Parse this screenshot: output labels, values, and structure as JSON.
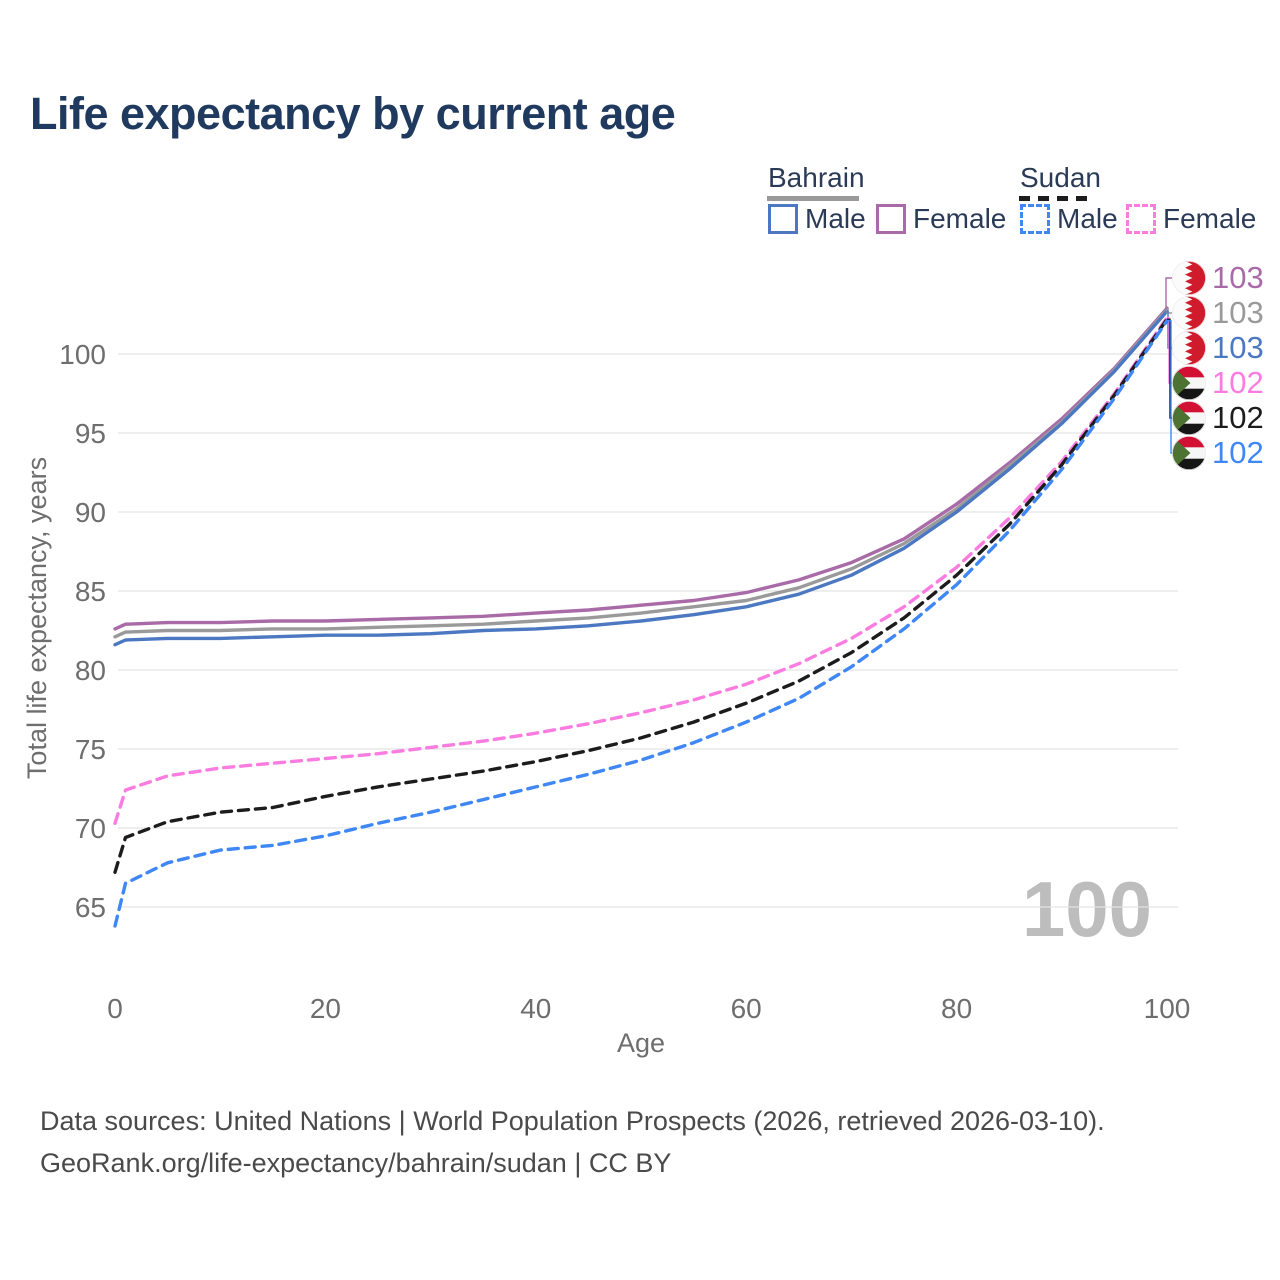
{
  "title": "Life expectancy by current age",
  "legend": {
    "groups": [
      {
        "name": "Bahrain",
        "line_style": "solid",
        "line_color": "#9a9a9a",
        "items": [
          {
            "label": "Male",
            "color": "#4b78c1",
            "style": "solid"
          },
          {
            "label": "Female",
            "color": "#a96ba8",
            "style": "solid"
          }
        ]
      },
      {
        "name": "Sudan",
        "line_style": "dashed",
        "line_color": "#1c1c1c",
        "items": [
          {
            "label": "Male",
            "color": "#3f87f5",
            "style": "dashed"
          },
          {
            "label": "Female",
            "color": "#fb7ce0",
            "style": "dashed"
          }
        ]
      }
    ]
  },
  "chart_data": {
    "type": "line",
    "title": "Life expectancy by current age",
    "xlabel": "Age",
    "ylabel": "Total life expectancy, years",
    "xlim": [
      0,
      100
    ],
    "ylim": [
      62,
      104
    ],
    "x_ticks": [
      0,
      20,
      40,
      60,
      80,
      100
    ],
    "y_ticks": [
      65,
      70,
      75,
      80,
      85,
      90,
      95,
      100
    ],
    "grid": "horizontal",
    "legend_position": "top-right",
    "x": [
      0,
      1,
      5,
      10,
      15,
      20,
      25,
      30,
      35,
      40,
      45,
      50,
      55,
      60,
      65,
      70,
      75,
      80,
      85,
      90,
      95,
      100
    ],
    "series": [
      {
        "name": "Bahrain Female",
        "country": "bahrain",
        "sex": "Female",
        "color": "#a96ba8",
        "dashed": false,
        "end_label": "103",
        "values": [
          82.6,
          82.9,
          83.0,
          83.0,
          83.1,
          83.1,
          83.2,
          83.3,
          83.4,
          83.6,
          83.8,
          84.1,
          84.4,
          84.9,
          85.7,
          86.8,
          88.3,
          90.5,
          93.1,
          95.9,
          99.1,
          102.9
        ]
      },
      {
        "name": "Bahrain Both sexes",
        "country": "bahrain",
        "sex": "Both",
        "color": "#9a9a9a",
        "dashed": false,
        "end_label": "103",
        "values": [
          82.1,
          82.4,
          82.5,
          82.5,
          82.6,
          82.6,
          82.7,
          82.8,
          82.9,
          83.1,
          83.3,
          83.6,
          84.0,
          84.4,
          85.2,
          86.4,
          88.0,
          90.2,
          92.9,
          95.7,
          99.0,
          102.8
        ]
      },
      {
        "name": "Bahrain Male",
        "country": "bahrain",
        "sex": "Male",
        "color": "#4b78c1",
        "dashed": false,
        "end_label": "103",
        "values": [
          81.6,
          81.9,
          82.0,
          82.0,
          82.1,
          82.2,
          82.2,
          82.3,
          82.5,
          82.6,
          82.8,
          83.1,
          83.5,
          84.0,
          84.8,
          86.0,
          87.7,
          90.0,
          92.7,
          95.6,
          98.9,
          102.7
        ]
      },
      {
        "name": "Sudan Female",
        "country": "sudan",
        "sex": "Female",
        "color": "#fb7ce0",
        "dashed": true,
        "end_label": "102",
        "values": [
          70.3,
          72.4,
          73.3,
          73.8,
          74.1,
          74.4,
          74.7,
          75.1,
          75.5,
          76.0,
          76.6,
          77.3,
          78.1,
          79.1,
          80.4,
          82.0,
          84.0,
          86.5,
          89.6,
          93.2,
          97.5,
          102.3
        ]
      },
      {
        "name": "Sudan Both sexes",
        "country": "sudan",
        "sex": "Both",
        "color": "#1c1c1c",
        "dashed": true,
        "end_label": "102",
        "values": [
          67.2,
          69.4,
          70.4,
          71.0,
          71.3,
          72.0,
          72.6,
          73.1,
          73.6,
          74.2,
          74.9,
          75.7,
          76.7,
          77.9,
          79.3,
          81.1,
          83.3,
          86.0,
          89.2,
          93.0,
          97.4,
          102.2
        ]
      },
      {
        "name": "Sudan Male",
        "country": "sudan",
        "sex": "Male",
        "color": "#3f87f5",
        "dashed": true,
        "end_label": "102",
        "values": [
          63.8,
          66.5,
          67.8,
          68.6,
          68.9,
          69.5,
          70.3,
          71.0,
          71.8,
          72.6,
          73.4,
          74.3,
          75.4,
          76.7,
          78.2,
          80.2,
          82.6,
          85.4,
          88.8,
          92.7,
          97.2,
          102.1
        ]
      }
    ]
  },
  "watermark": "100",
  "footer": {
    "line1": "Data sources: United Nations | World Population Prospects (2026, retrieved 2026-03-10).",
    "line2": "GeoRank.org/life-expectancy/bahrain/sudan | CC BY"
  },
  "colors": {
    "title_text": "#1f3a5e",
    "legend_text": "#2b3b57",
    "axis_text": "#6e6e6e",
    "gridline": "#e3e3e3",
    "watermark": "#bdbdbd",
    "footer_text": "#4a4a4a",
    "bahrain_flag_red": "#cf1b2b",
    "sudan_flag_red": "#d21034",
    "sudan_flag_green": "#4c7331",
    "sudan_flag_black": "#151515"
  }
}
